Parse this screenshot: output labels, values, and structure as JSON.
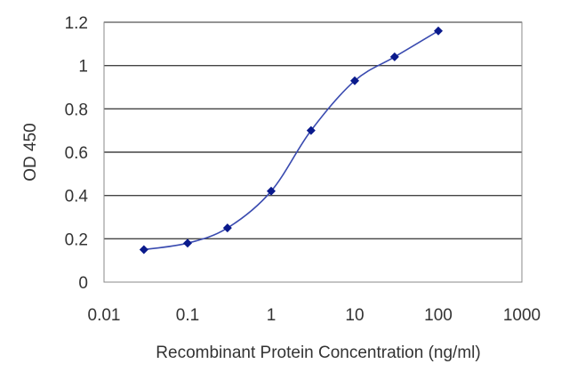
{
  "chart_data": {
    "type": "line",
    "title": "",
    "xlabel": "Recombinant Protein Concentration (ng/ml)",
    "ylabel": "OD 450",
    "x_scale": "log",
    "xlim": [
      0.01,
      1000
    ],
    "ylim": [
      0,
      1.2
    ],
    "x_ticks": [
      "0.01",
      "0.1",
      "1",
      "10",
      "100",
      "1000"
    ],
    "y_ticks": [
      "0",
      "0.2",
      "0.4",
      "0.6",
      "0.8",
      "1",
      "1.2"
    ],
    "grid": "horizontal",
    "legend": "none",
    "line_color": "#3a4bb0",
    "marker_color": "#0a1a8c",
    "series": [
      {
        "x": [
          0.03,
          0.1,
          0.3,
          1,
          3,
          10,
          30,
          100
        ],
        "y": [
          0.15,
          0.18,
          0.25,
          0.42,
          0.7,
          0.93,
          1.04,
          1.16
        ]
      }
    ]
  }
}
